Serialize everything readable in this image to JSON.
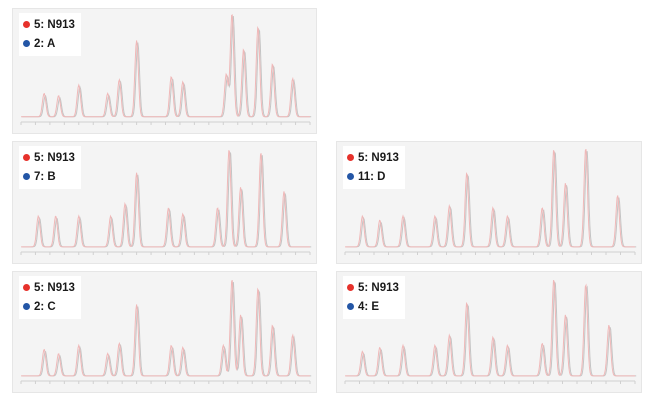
{
  "colors": {
    "ref": "#e6312b",
    "cmp": "#2456a6",
    "ref_line": "#f0b8b8",
    "cmp_line": "#c4c4c4"
  },
  "panels": [
    {
      "ref_label": "5: N913",
      "cmp_label": "2: A"
    },
    {
      "ref_label": "5: N913",
      "cmp_label": "7: B"
    },
    {
      "ref_label": "5: N913",
      "cmp_label": "11: D"
    },
    {
      "ref_label": "5: N913",
      "cmp_label": "2: C"
    },
    {
      "ref_label": "5: N913",
      "cmp_label": "4: E"
    }
  ],
  "chart_data": [
    {
      "type": "line",
      "series": [
        {
          "name": "5: N913",
          "peaks": [
            [
              0.08,
              0.22
            ],
            [
              0.13,
              0.2
            ],
            [
              0.2,
              0.3
            ],
            [
              0.3,
              0.22
            ],
            [
              0.34,
              0.35
            ],
            [
              0.4,
              0.72
            ],
            [
              0.52,
              0.38
            ],
            [
              0.56,
              0.33
            ],
            [
              0.71,
              0.4
            ],
            [
              0.73,
              0.98
            ],
            [
              0.77,
              0.64
            ],
            [
              0.82,
              0.85
            ],
            [
              0.87,
              0.5
            ],
            [
              0.94,
              0.36
            ]
          ]
        },
        {
          "name": "2: A",
          "peaks": [
            [
              0.08,
              0.2
            ],
            [
              0.13,
              0.18
            ],
            [
              0.2,
              0.28
            ],
            [
              0.3,
              0.2
            ],
            [
              0.34,
              0.33
            ],
            [
              0.4,
              0.7
            ],
            [
              0.52,
              0.36
            ],
            [
              0.56,
              0.31
            ],
            [
              0.71,
              0.38
            ],
            [
              0.73,
              0.96
            ],
            [
              0.77,
              0.62
            ],
            [
              0.82,
              0.83
            ],
            [
              0.87,
              0.48
            ],
            [
              0.94,
              0.34
            ]
          ]
        }
      ]
    },
    {
      "type": "line",
      "series": [
        {
          "name": "5: N913",
          "peaks": [
            [
              0.06,
              0.3
            ],
            [
              0.12,
              0.3
            ],
            [
              0.2,
              0.3
            ],
            [
              0.31,
              0.3
            ],
            [
              0.36,
              0.42
            ],
            [
              0.4,
              0.72
            ],
            [
              0.51,
              0.38
            ],
            [
              0.56,
              0.32
            ],
            [
              0.68,
              0.38
            ],
            [
              0.72,
              0.95
            ],
            [
              0.76,
              0.58
            ],
            [
              0.83,
              0.92
            ],
            [
              0.91,
              0.54
            ]
          ]
        },
        {
          "name": "7: B",
          "peaks": [
            [
              0.06,
              0.28
            ],
            [
              0.12,
              0.28
            ],
            [
              0.2,
              0.28
            ],
            [
              0.31,
              0.28
            ],
            [
              0.36,
              0.4
            ],
            [
              0.4,
              0.7
            ],
            [
              0.51,
              0.36
            ],
            [
              0.56,
              0.3
            ],
            [
              0.68,
              0.36
            ],
            [
              0.72,
              0.93
            ],
            [
              0.76,
              0.56
            ],
            [
              0.83,
              0.9
            ],
            [
              0.91,
              0.52
            ]
          ]
        }
      ]
    },
    {
      "type": "line",
      "series": [
        {
          "name": "5: N913",
          "peaks": [
            [
              0.06,
              0.3
            ],
            [
              0.12,
              0.26
            ],
            [
              0.2,
              0.3
            ],
            [
              0.31,
              0.3
            ],
            [
              0.36,
              0.4
            ],
            [
              0.42,
              0.72
            ],
            [
              0.51,
              0.38
            ],
            [
              0.56,
              0.3
            ],
            [
              0.68,
              0.38
            ],
            [
              0.72,
              0.95
            ],
            [
              0.76,
              0.62
            ],
            [
              0.83,
              0.96
            ],
            [
              0.94,
              0.5
            ]
          ]
        },
        {
          "name": "11: D",
          "peaks": [
            [
              0.06,
              0.28
            ],
            [
              0.12,
              0.24
            ],
            [
              0.2,
              0.28
            ],
            [
              0.31,
              0.28
            ],
            [
              0.36,
              0.38
            ],
            [
              0.42,
              0.7
            ],
            [
              0.51,
              0.36
            ],
            [
              0.56,
              0.28
            ],
            [
              0.68,
              0.36
            ],
            [
              0.72,
              0.93
            ],
            [
              0.76,
              0.6
            ],
            [
              0.83,
              0.94
            ],
            [
              0.94,
              0.48
            ]
          ]
        }
      ]
    },
    {
      "type": "line",
      "series": [
        {
          "name": "5: N913",
          "peaks": [
            [
              0.08,
              0.26
            ],
            [
              0.13,
              0.22
            ],
            [
              0.2,
              0.3
            ],
            [
              0.3,
              0.22
            ],
            [
              0.34,
              0.32
            ],
            [
              0.4,
              0.7
            ],
            [
              0.52,
              0.3
            ],
            [
              0.56,
              0.28
            ],
            [
              0.7,
              0.3
            ],
            [
              0.73,
              0.95
            ],
            [
              0.76,
              0.6
            ],
            [
              0.82,
              0.86
            ],
            [
              0.87,
              0.5
            ],
            [
              0.94,
              0.4
            ]
          ]
        },
        {
          "name": "2: C",
          "peaks": [
            [
              0.08,
              0.24
            ],
            [
              0.13,
              0.2
            ],
            [
              0.2,
              0.28
            ],
            [
              0.3,
              0.2
            ],
            [
              0.34,
              0.3
            ],
            [
              0.4,
              0.68
            ],
            [
              0.52,
              0.28
            ],
            [
              0.56,
              0.26
            ],
            [
              0.7,
              0.28
            ],
            [
              0.73,
              0.93
            ],
            [
              0.76,
              0.58
            ],
            [
              0.82,
              0.84
            ],
            [
              0.87,
              0.48
            ],
            [
              0.94,
              0.38
            ]
          ]
        }
      ]
    },
    {
      "type": "line",
      "series": [
        {
          "name": "5: N913",
          "peaks": [
            [
              0.06,
              0.24
            ],
            [
              0.12,
              0.28
            ],
            [
              0.2,
              0.3
            ],
            [
              0.31,
              0.3
            ],
            [
              0.36,
              0.4
            ],
            [
              0.42,
              0.72
            ],
            [
              0.51,
              0.38
            ],
            [
              0.56,
              0.3
            ],
            [
              0.68,
              0.32
            ],
            [
              0.72,
              0.95
            ],
            [
              0.76,
              0.6
            ],
            [
              0.83,
              0.9
            ],
            [
              0.91,
              0.5
            ]
          ]
        },
        {
          "name": "4: E",
          "peaks": [
            [
              0.06,
              0.22
            ],
            [
              0.12,
              0.26
            ],
            [
              0.2,
              0.28
            ],
            [
              0.31,
              0.28
            ],
            [
              0.36,
              0.38
            ],
            [
              0.42,
              0.7
            ],
            [
              0.51,
              0.36
            ],
            [
              0.56,
              0.28
            ],
            [
              0.68,
              0.3
            ],
            [
              0.72,
              0.93
            ],
            [
              0.76,
              0.58
            ],
            [
              0.83,
              0.88
            ],
            [
              0.91,
              0.48
            ]
          ]
        }
      ]
    }
  ]
}
